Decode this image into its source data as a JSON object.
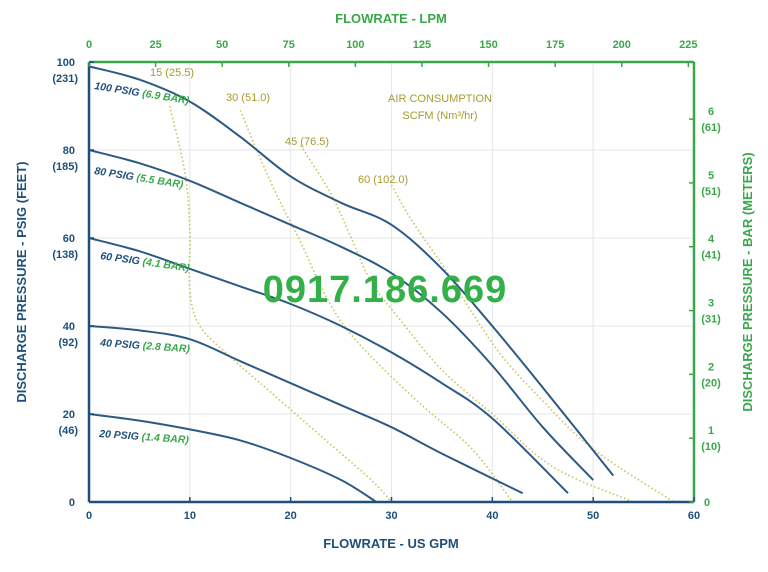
{
  "watermark": "0917.186.669",
  "chart_data": {
    "type": "line",
    "x_bottom_label": "FLOWRATE - US GPM",
    "x_top_label": "FLOWRATE - LPM",
    "y_left_label": "DISCHARGE PRESSURE - PSIG (FEET)",
    "y_right_label": "DISCHARGE PRESSURE - BAR (METERS)",
    "xlim": [
      0,
      60
    ],
    "ylim": [
      0,
      100
    ],
    "x_ticks": [
      "0",
      "10",
      "20",
      "30",
      "40",
      "50",
      "60"
    ],
    "x_top_ticks": [
      "0",
      "25",
      "50",
      "75",
      "100",
      "125",
      "150",
      "175",
      "200",
      "225"
    ],
    "y_left_ticks": [
      {
        "psig": "0",
        "feet": ""
      },
      {
        "psig": "20",
        "feet": "(46)"
      },
      {
        "psig": "40",
        "feet": "(92)"
      },
      {
        "psig": "60",
        "feet": "(138)"
      },
      {
        "psig": "80",
        "feet": "(185)"
      },
      {
        "psig": "100",
        "feet": "(231)"
      }
    ],
    "y_right_ticks": [
      {
        "bar": "0",
        "meters": ""
      },
      {
        "bar": "1",
        "meters": "(10)"
      },
      {
        "bar": "2",
        "meters": "(20)"
      },
      {
        "bar": "3",
        "meters": "(31)"
      },
      {
        "bar": "4",
        "meters": "(41)"
      },
      {
        "bar": "5",
        "meters": "(51)"
      },
      {
        "bar": "6",
        "meters": "(61)"
      }
    ],
    "annotation": {
      "line1": "AIR CONSUMPTION",
      "line2": "SCFM (Nm³/hr)"
    },
    "series": [
      {
        "name_psig": "100 PSIG",
        "name_bar": "(6.9 BAR)",
        "x": [
          0,
          5,
          10,
          15,
          20,
          25,
          30,
          35,
          40,
          45,
          52
        ],
        "y": [
          99,
          96,
          91,
          83,
          74,
          68,
          63,
          53,
          40,
          26,
          6
        ]
      },
      {
        "name_psig": "80 PSIG",
        "name_bar": "(5.5 BAR)",
        "x": [
          0,
          5,
          10,
          15,
          20,
          25,
          30,
          35,
          40,
          45,
          50
        ],
        "y": [
          80,
          77,
          73,
          68,
          63,
          58,
          52,
          43,
          31,
          17,
          5
        ]
      },
      {
        "name_psig": "60 PSIG",
        "name_bar": "(4.1 BAR)",
        "x": [
          0,
          5,
          10,
          15,
          20,
          25,
          30,
          35,
          40,
          47.5
        ],
        "y": [
          60,
          57,
          53,
          49,
          45,
          40,
          34,
          27,
          19,
          2
        ]
      },
      {
        "name_psig": "40 PSIG",
        "name_bar": "(2.8 BAR)",
        "x": [
          0,
          5,
          10,
          15,
          20,
          25,
          30,
          35,
          43
        ],
        "y": [
          40,
          39,
          37,
          32,
          27,
          22,
          17,
          11,
          2
        ]
      },
      {
        "name_psig": "20 PSIG",
        "name_bar": "(1.4 BAR)",
        "x": [
          0,
          5,
          10,
          15,
          20,
          25,
          28.5
        ],
        "y": [
          20,
          18.5,
          16.5,
          14,
          10,
          5,
          0
        ]
      }
    ],
    "air_consumption": [
      {
        "label": "15 (25.5)",
        "x": [
          8,
          9.5,
          10,
          10,
          11,
          14,
          18,
          23,
          28,
          30
        ],
        "y": [
          90,
          75,
          62,
          48,
          40,
          33,
          25,
          15,
          5,
          0
        ]
      },
      {
        "label": "30 (51.0)",
        "x": [
          15,
          17,
          19,
          21,
          23,
          25,
          28,
          33,
          38,
          42
        ],
        "y": [
          89,
          78,
          68,
          59,
          49,
          41,
          33,
          22,
          12,
          0
        ]
      },
      {
        "label": "45 (76.5)",
        "x": [
          21,
          24,
          26,
          28,
          31,
          35,
          40,
          46,
          54
        ],
        "y": [
          81,
          70,
          60,
          50,
          41,
          30,
          20,
          8,
          0
        ]
      },
      {
        "label": "60 (102.0)",
        "x": [
          30,
          32,
          35,
          38,
          41,
          45,
          50,
          58
        ],
        "y": [
          72,
          64,
          54,
          43,
          33,
          23,
          12,
          0
        ]
      }
    ]
  }
}
